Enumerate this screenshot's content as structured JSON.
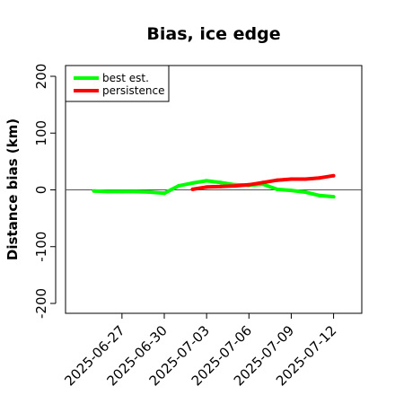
{
  "chart_data": {
    "type": "line",
    "title": "Bias, ice edge",
    "xlabel": "",
    "ylabel": "Distance bias (km)",
    "xlim": [
      "2025-06-23",
      "2025-07-14"
    ],
    "ylim": [
      -200,
      200
    ],
    "x_ticks": [
      "2025-06-27",
      "2025-06-30",
      "2025-07-03",
      "2025-07-06",
      "2025-07-09",
      "2025-07-12"
    ],
    "y_ticks": [
      -200,
      -100,
      0,
      100,
      200
    ],
    "zero_line": true,
    "grid": false,
    "legend": {
      "placement": "top-left"
    },
    "series": [
      {
        "name": "best est.",
        "color": "#00ff00",
        "points": [
          {
            "x": "2025-06-25",
            "y": -2
          },
          {
            "x": "2025-06-26",
            "y": -3
          },
          {
            "x": "2025-06-27",
            "y": -3
          },
          {
            "x": "2025-06-28",
            "y": -3
          },
          {
            "x": "2025-06-29",
            "y": -4
          },
          {
            "x": "2025-06-30",
            "y": -6
          },
          {
            "x": "2025-07-01",
            "y": 7
          },
          {
            "x": "2025-07-02",
            "y": 12
          },
          {
            "x": "2025-07-03",
            "y": 16
          },
          {
            "x": "2025-07-04",
            "y": 13
          },
          {
            "x": "2025-07-05",
            "y": 9
          },
          {
            "x": "2025-07-06",
            "y": 8
          },
          {
            "x": "2025-07-07",
            "y": 10
          },
          {
            "x": "2025-07-08",
            "y": 1
          },
          {
            "x": "2025-07-09",
            "y": -1
          },
          {
            "x": "2025-07-10",
            "y": -4
          },
          {
            "x": "2025-07-11",
            "y": -10
          },
          {
            "x": "2025-07-12",
            "y": -12
          }
        ]
      },
      {
        "name": "persistence",
        "color": "#ff0000",
        "points": [
          {
            "x": "2025-07-02",
            "y": 1
          },
          {
            "x": "2025-07-03",
            "y": 5
          },
          {
            "x": "2025-07-04",
            "y": 6
          },
          {
            "x": "2025-07-05",
            "y": 7
          },
          {
            "x": "2025-07-06",
            "y": 9
          },
          {
            "x": "2025-07-07",
            "y": 13
          },
          {
            "x": "2025-07-08",
            "y": 17
          },
          {
            "x": "2025-07-09",
            "y": 19
          },
          {
            "x": "2025-07-10",
            "y": 19
          },
          {
            "x": "2025-07-11",
            "y": 21
          },
          {
            "x": "2025-07-12",
            "y": 25
          }
        ]
      }
    ]
  }
}
